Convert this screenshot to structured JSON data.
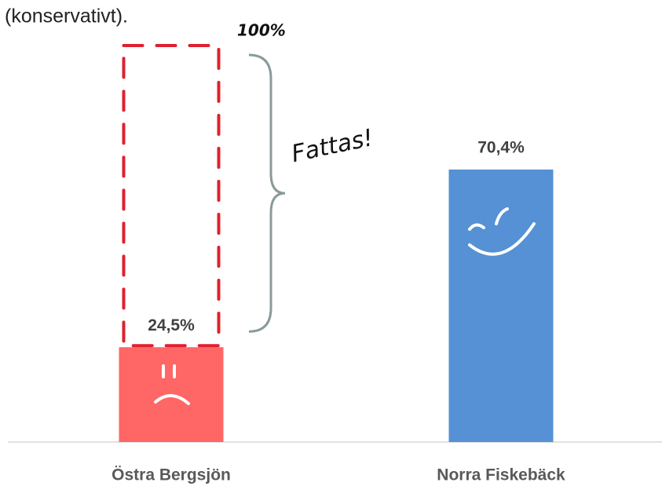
{
  "chart_data": {
    "type": "bar",
    "title": "(konservativt).",
    "categories": [
      "Östra Bergsjön",
      "Norra Fiskebäck"
    ],
    "values": [
      24.5,
      70.4
    ],
    "value_labels": [
      "24,5%",
      "70,4%"
    ],
    "colors": [
      "#ff6666",
      "#5591d4"
    ],
    "ylim": [
      0,
      100
    ],
    "reference": {
      "value": 100,
      "label": "100%",
      "color": "#e0202e"
    },
    "annotation": "Fattas!"
  }
}
